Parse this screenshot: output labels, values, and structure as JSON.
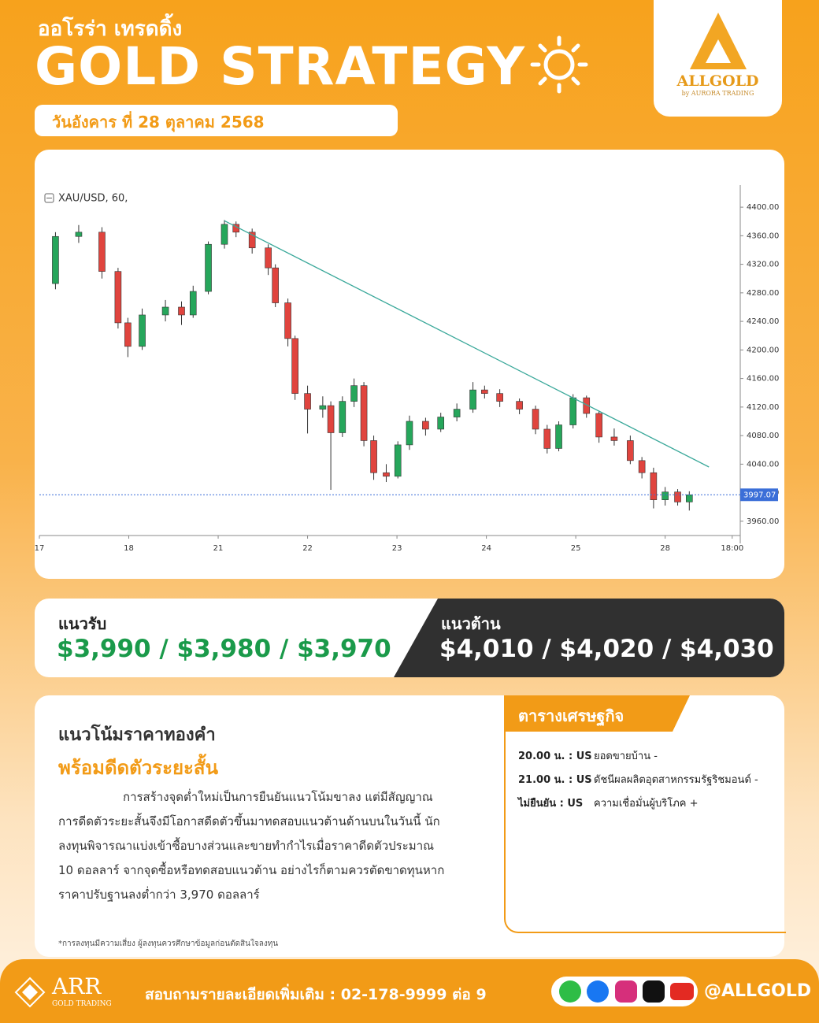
{
  "header": {
    "brand_thai": "ออโรร่า เทรดดิ้ง",
    "title": "GOLD STRATEGY",
    "date": "วันอังคาร ที่ 28 ตุลาคม 2568"
  },
  "logo": {
    "name": "ALLGOLD",
    "tagline": "by AURORA TRADING"
  },
  "chart_data": {
    "type": "candlestick",
    "symbol_label": "XAU/USD, 60,",
    "x": [
      0.18,
      0.44,
      0.7,
      0.88,
      0.99,
      1.15,
      1.41,
      1.59,
      1.72,
      1.89,
      2.07,
      2.2,
      2.38,
      2.56,
      2.64,
      2.78,
      2.86,
      3.0,
      3.17,
      3.26,
      3.39,
      3.52,
      3.63,
      3.74,
      3.88,
      4.01,
      4.14,
      4.32,
      4.49,
      4.67,
      4.85,
      4.98,
      5.15,
      5.37,
      5.55,
      5.68,
      5.81,
      5.97,
      6.12,
      6.26,
      6.43,
      6.61,
      6.74,
      6.87,
      7.0,
      7.14,
      7.27
    ],
    "open": [
      4293,
      4359,
      4365,
      4310,
      4238,
      4205,
      4249,
      4260,
      4249,
      4282,
      4348,
      4376,
      4365,
      4343,
      4315,
      4266,
      4216,
      4139,
      4117,
      4122,
      4084,
      4128,
      4150,
      4073,
      4028,
      4023,
      4067,
      4100,
      4089,
      4106,
      4117,
      4144,
      4139,
      4128,
      4117,
      4089,
      4062,
      4095,
      4133,
      4111,
      4078,
      4073,
      4045,
      4028,
      3990,
      4001,
      3987
    ],
    "high": [
      4365,
      4375,
      4372,
      4315,
      4245,
      4258,
      4270,
      4268,
      4290,
      4352,
      4382,
      4380,
      4370,
      4348,
      4320,
      4272,
      4220,
      4150,
      4135,
      4128,
      4135,
      4160,
      4155,
      4080,
      4040,
      4072,
      4108,
      4105,
      4112,
      4125,
      4155,
      4150,
      4145,
      4132,
      4122,
      4095,
      4100,
      4138,
      4136,
      4115,
      4090,
      4080,
      4050,
      4035,
      4008,
      4005,
      4002
    ],
    "low": [
      4285,
      4350,
      4300,
      4230,
      4190,
      4200,
      4240,
      4235,
      4245,
      4278,
      4342,
      4358,
      4335,
      4305,
      4260,
      4205,
      4130,
      4083,
      4105,
      4004,
      4078,
      4120,
      4065,
      4018,
      4015,
      4020,
      4060,
      4080,
      4085,
      4100,
      4112,
      4132,
      4120,
      4110,
      4082,
      4055,
      4058,
      4090,
      4105,
      4070,
      4066,
      4040,
      4020,
      3978,
      3982,
      3982,
      3975
    ],
    "close": [
      4359,
      4365,
      4310,
      4238,
      4205,
      4249,
      4260,
      4249,
      4282,
      4348,
      4376,
      4365,
      4343,
      4315,
      4266,
      4216,
      4139,
      4117,
      4122,
      4084,
      4128,
      4150,
      4073,
      4028,
      4023,
      4067,
      4100,
      4089,
      4106,
      4117,
      4144,
      4139,
      4128,
      4117,
      4089,
      4062,
      4095,
      4133,
      4111,
      4078,
      4073,
      4045,
      4028,
      3990,
      4001,
      3987,
      3997
    ],
    "up_color": "#26a65b",
    "down_color": "#e0443e",
    "xlim": [
      0,
      7.84
    ],
    "xticks": [
      {
        "value": 0,
        "label": "17"
      },
      {
        "value": 1,
        "label": "18"
      },
      {
        "value": 2,
        "label": "21"
      },
      {
        "value": 3,
        "label": "22"
      },
      {
        "value": 4,
        "label": "23"
      },
      {
        "value": 5,
        "label": "24"
      },
      {
        "value": 6,
        "label": "25"
      },
      {
        "value": 7,
        "label": "28"
      },
      {
        "value": 7.75,
        "label": "18:00"
      }
    ],
    "ylim": [
      3940,
      4431
    ],
    "yticks": [
      {
        "value": 3960,
        "label": "3960.00"
      },
      {
        "value": 4000,
        "label": "4000.00"
      },
      {
        "value": 4040,
        "label": "4040.00"
      },
      {
        "value": 4080,
        "label": "4080.00"
      },
      {
        "value": 4120,
        "label": "4120.00"
      },
      {
        "value": 4160,
        "label": "4160.00"
      },
      {
        "value": 4200,
        "label": "4200.00"
      },
      {
        "value": 4240,
        "label": "4240.00"
      },
      {
        "value": 4280,
        "label": "4280.00"
      },
      {
        "value": 4320,
        "label": "4320.00"
      },
      {
        "value": 4360,
        "label": "4360.00"
      },
      {
        "value": 4400,
        "label": "4400.00"
      }
    ],
    "trendline": {
      "x": [
        2.07,
        7.49
      ],
      "y": [
        4381,
        4036
      ],
      "color": "#3aa89a"
    },
    "last_price": {
      "value": 3997.07,
      "label": "3997.07",
      "color": "#3b6fd8"
    }
  },
  "levels": {
    "support": {
      "title": "แนวรับ",
      "values": "$3,990 / $3,980 / $3,970"
    },
    "resistance": {
      "title": "แนวต้าน",
      "values": "$4,010 / $4,020 / $4,030"
    }
  },
  "article": {
    "heading": "แนวโน้มราคาทองคำ",
    "subheading": "พร้อมดีดตัวระยะสั้น",
    "body": [
      "การสร้างจุดต่ำใหม่เป็นการยืนยันแนวโน้มขาลง แต่มีสัญญาณ",
      "การดีดตัวระยะสั้นจึงมีโอกาสดีดตัวขึ้นมาทดสอบแนวต้านด้านบนในวันนี้ นัก",
      "ลงทุนพิจารณาแบ่งเข้าซื้อบางส่วนและขายทำกำไรเมื่อราคาดีดตัวประมาณ",
      "10 ดอลลาร์ จากจุดซื้อหรือทดสอบแนวต้าน อย่างไรก็ตามควรตัดขาดทุนหาก",
      "ราคาปรับฐานลงต่ำกว่า 3,970 ดอลลาร์"
    ]
  },
  "calendar": {
    "title": "ตารางเศรษฐกิจ",
    "rows": [
      {
        "time": "20.00 น. : US",
        "event": "ยอดขายบ้าน -"
      },
      {
        "time": "21.00 น. : US",
        "event": "ดัชนีผลผลิตอุตสาหกรรมรัฐริชมอนด์ -"
      },
      {
        "time": "ไม่ยืนยัน : US",
        "event": "ความเชื่อมั่นผู้บริโภค +"
      }
    ]
  },
  "disclaimer": "*การลงทุนมีความเสี่ยง ผู้ลงทุนควรศึกษาข้อมูลก่อนตัดสินใจลงทุน",
  "footer": {
    "company": "ARR",
    "company_sub": "GOLD TRADING",
    "contact": "สอบถามรายละเอียดเพิ่มเติม : 02-178-9999 ต่อ 9",
    "handle": "@ALLGOLD"
  }
}
